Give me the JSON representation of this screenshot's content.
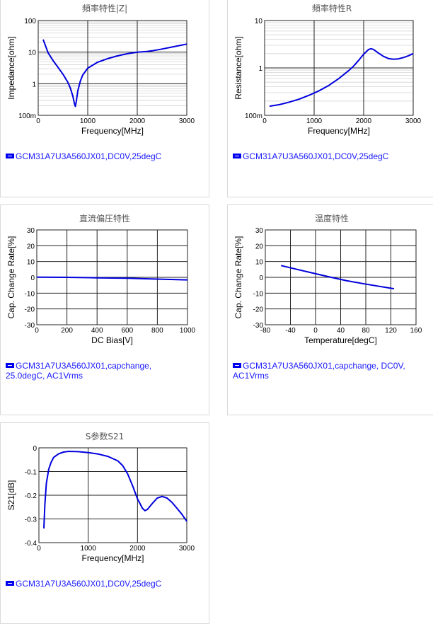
{
  "chart_data": [
    {
      "id": "impedance",
      "type": "line",
      "title": "頻率特性|Z|",
      "xlabel": "Frequency[MHz]",
      "ylabel": "Impedance[ohm]",
      "yscale": "log",
      "xlim": [
        0,
        3000
      ],
      "ylim": [
        0.1,
        100
      ],
      "xticks": [
        0,
        1000,
        2000,
        3000
      ],
      "xtick_labels": [
        "0",
        "1000",
        "2000",
        "3000"
      ],
      "yticks": [
        0.1,
        1,
        10,
        100
      ],
      "ytick_labels": [
        "100m",
        "1",
        "10",
        "100"
      ],
      "grid": true,
      "series_color": "#0000dd",
      "legend": [
        "GCM31A7U3A560JX01,DC0V,25degC"
      ],
      "x": [
        100,
        200,
        300,
        400,
        500,
        600,
        650,
        700,
        730,
        750,
        770,
        800,
        850,
        900,
        1000,
        1200,
        1400,
        1600,
        1800,
        2000,
        2200,
        2300,
        2500,
        2700,
        3000
      ],
      "y": [
        25,
        9.5,
        5.4,
        3.3,
        2.0,
        1.1,
        0.72,
        0.4,
        0.24,
        0.19,
        0.28,
        0.6,
        1.2,
        1.9,
        3.1,
        4.8,
        6.2,
        7.6,
        8.9,
        10.0,
        10.5,
        11.0,
        12.5,
        14.5,
        18
      ]
    },
    {
      "id": "resistance",
      "type": "line",
      "title": "頻率特性R",
      "xlabel": "Frequency[MHz]",
      "ylabel": "Resistance[ohm]",
      "yscale": "log",
      "xlim": [
        0,
        3000
      ],
      "ylim": [
        0.1,
        10
      ],
      "xticks": [
        0,
        1000,
        2000,
        3000
      ],
      "xtick_labels": [
        "0",
        "1000",
        "2000",
        "3000"
      ],
      "yticks": [
        0.1,
        1,
        10
      ],
      "ytick_labels": [
        "100m",
        "1",
        "10"
      ],
      "grid": true,
      "series_color": "#0000dd",
      "legend": [
        "GCM31A7U3A560JX01,DC0V,25degC"
      ],
      "x": [
        100,
        300,
        500,
        700,
        900,
        1100,
        1300,
        1500,
        1700,
        1800,
        1900,
        2000,
        2100,
        2150,
        2200,
        2300,
        2400,
        2500,
        2600,
        2700,
        2800,
        2900,
        3000
      ],
      "y": [
        0.155,
        0.168,
        0.19,
        0.22,
        0.265,
        0.33,
        0.43,
        0.6,
        0.88,
        1.1,
        1.45,
        1.95,
        2.45,
        2.55,
        2.45,
        2.05,
        1.75,
        1.58,
        1.52,
        1.55,
        1.65,
        1.8,
        2.0
      ]
    },
    {
      "id": "dcbias",
      "type": "line",
      "title": "直流偏圧特性",
      "xlabel": "DC Bias[V]",
      "ylabel": "Cap. Change Rate[%]",
      "yscale": "linear",
      "xlim": [
        0,
        1000
      ],
      "ylim": [
        -30,
        30
      ],
      "xticks": [
        0,
        200,
        400,
        600,
        800,
        1000
      ],
      "xtick_labels": [
        "0",
        "200",
        "400",
        "600",
        "800",
        "1000"
      ],
      "yticks": [
        -30,
        -20,
        -10,
        0,
        10,
        20,
        30
      ],
      "ytick_labels": [
        "-30",
        "-20",
        "-10",
        "0",
        "10",
        "20",
        "30"
      ],
      "grid": true,
      "series_color": "#0000dd",
      "legend": [
        "GCM31A7U3A560JX01,capchange,",
        "25.0degC, AC1Vrms"
      ],
      "x": [
        0,
        200,
        400,
        600,
        800,
        1000
      ],
      "y": [
        0.1,
        0.0,
        -0.3,
        -0.6,
        -1.1,
        -1.6
      ]
    },
    {
      "id": "temperature",
      "type": "line",
      "title": "温度特性",
      "xlabel": "Temperature[degC]",
      "ylabel": "Cap. Change Rate[%]",
      "yscale": "linear",
      "xlim": [
        -80,
        160
      ],
      "ylim": [
        -30,
        30
      ],
      "xticks": [
        -80,
        -40,
        0,
        40,
        80,
        120,
        160
      ],
      "xtick_labels": [
        "-80",
        "-40",
        "0",
        "40",
        "80",
        "120",
        "160"
      ],
      "yticks": [
        -30,
        -20,
        -10,
        0,
        10,
        20,
        30
      ],
      "ytick_labels": [
        "-30",
        "-20",
        "-10",
        "0",
        "10",
        "20",
        "30"
      ],
      "grid": true,
      "series_color": "#0000dd",
      "legend": [
        "GCM31A7U3A560JX01,capchange, DC0V,",
        "AC1Vrms"
      ],
      "x": [
        -55,
        -25,
        0,
        25,
        50,
        85,
        125
      ],
      "y": [
        7.5,
        4.6,
        2.3,
        0,
        -2.2,
        -4.6,
        -7.2
      ]
    },
    {
      "id": "s21",
      "type": "line",
      "title": "S参数S21",
      "xlabel": "Frequency[MHz]",
      "ylabel": "S21[dB]",
      "yscale": "linear",
      "xlim": [
        0,
        3000
      ],
      "ylim": [
        -0.4,
        0
      ],
      "xticks": [
        0,
        1000,
        2000,
        3000
      ],
      "xtick_labels": [
        "0",
        "1000",
        "2000",
        "3000"
      ],
      "yticks": [
        -0.4,
        -0.3,
        -0.2,
        -0.1,
        0
      ],
      "ytick_labels": [
        "-0.4",
        "-0.3",
        "-0.2",
        "-0.1",
        "0"
      ],
      "grid": true,
      "series_color": "#0000dd",
      "legend": [
        "GCM31A7U3A560JX01,DC0V,25degC"
      ],
      "x": [
        100,
        120,
        150,
        200,
        250,
        300,
        400,
        500,
        600,
        800,
        1000,
        1200,
        1400,
        1600,
        1700,
        1800,
        1900,
        2000,
        2100,
        2150,
        2200,
        2300,
        2400,
        2500,
        2600,
        2700,
        2800,
        2900,
        3000
      ],
      "y": [
        -0.34,
        -0.24,
        -0.15,
        -0.09,
        -0.06,
        -0.04,
        -0.025,
        -0.018,
        -0.015,
        -0.016,
        -0.02,
        -0.026,
        -0.036,
        -0.055,
        -0.075,
        -0.11,
        -0.16,
        -0.215,
        -0.255,
        -0.265,
        -0.26,
        -0.235,
        -0.212,
        -0.205,
        -0.212,
        -0.23,
        -0.255,
        -0.28,
        -0.31
      ]
    }
  ]
}
